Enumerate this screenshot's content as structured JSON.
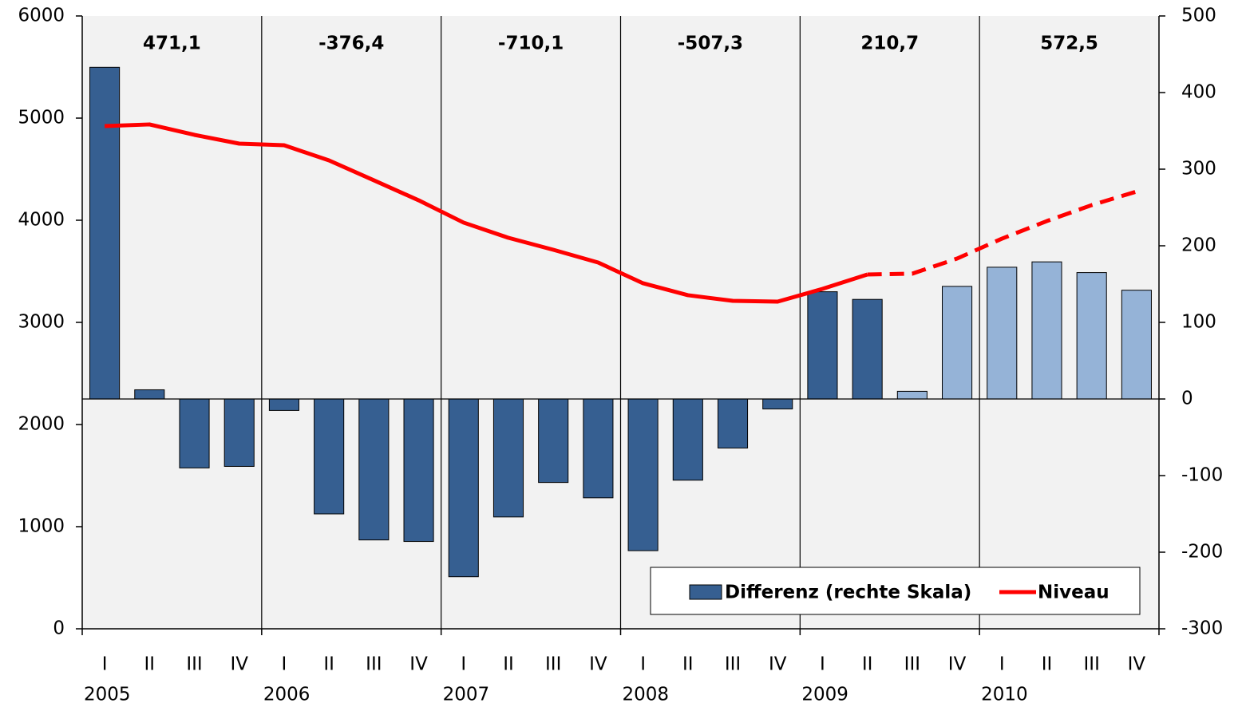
{
  "chart_data": {
    "type": "bar-line",
    "categories": [
      "I",
      "II",
      "III",
      "IV",
      "I",
      "II",
      "III",
      "IV",
      "I",
      "II",
      "III",
      "IV",
      "I",
      "II",
      "III",
      "IV",
      "I",
      "II",
      "III",
      "IV",
      "I",
      "II",
      "III",
      "IV"
    ],
    "years": [
      "2005",
      "2006",
      "2007",
      "2008",
      "2009",
      "2010"
    ],
    "year_totals": {
      "values": [
        471.1,
        -376.4,
        -710.1,
        -507.3,
        210.7,
        572.5
      ],
      "value_labels": [
        "471,1",
        "-376,4",
        "-710,1",
        "-507,3",
        "210,7",
        "572,5"
      ]
    },
    "series": [
      {
        "name": "Differenz (rechte Skala)",
        "type": "bar",
        "axis": "y2",
        "color": "#365f91",
        "colors": [
          "#365f91",
          "#365f91",
          "#365f91",
          "#365f91",
          "#365f91",
          "#365f91",
          "#365f91",
          "#365f91",
          "#365f91",
          "#365f91",
          "#365f91",
          "#365f91",
          "#365f91",
          "#365f91",
          "#365f91",
          "#365f91",
          "#365f91",
          "#365f91",
          "#95b3d7",
          "#95b3d7",
          "#95b3d7",
          "#95b3d7",
          "#95b3d7",
          "#95b3d7"
        ],
        "values": [
          433,
          12,
          -90,
          -88,
          -15,
          -150,
          -184,
          -186,
          -232,
          -154,
          -109,
          -129,
          -198,
          -106,
          -64,
          -13,
          140,
          130,
          10,
          147,
          172,
          179,
          165,
          142
        ]
      },
      {
        "name": "Niveau",
        "type": "line",
        "axis": "y",
        "color": "#ff0000",
        "dashed_from": 17,
        "values": [
          4922,
          4938,
          4836,
          4750,
          4734,
          4586,
          4391,
          4195,
          3977,
          3828,
          3711,
          3586,
          3383,
          3266,
          3211,
          3203,
          3328,
          3469,
          3477,
          3625,
          3820,
          3992,
          4148,
          4281
        ]
      }
    ],
    "ylim": [
      0,
      6000
    ],
    "yticks": [
      0,
      1000,
      2000,
      3000,
      4000,
      5000,
      6000
    ],
    "y2lim": [
      -300,
      500
    ],
    "y2ticks": [
      -300,
      -200,
      -100,
      0,
      100,
      200,
      300,
      400,
      500
    ],
    "legend": "bottom-right"
  }
}
